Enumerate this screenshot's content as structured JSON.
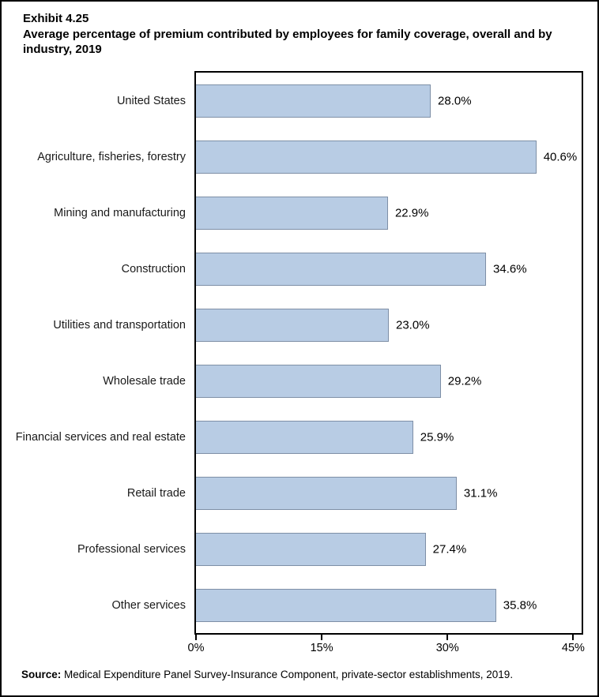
{
  "title": {
    "exhibit": "Exhibit 4.25",
    "text": "Average percentage of premium contributed by employees for family coverage, overall and by industry, 2019"
  },
  "source": {
    "label": "Source:",
    "text": " Medical Expenditure Panel Survey-Insurance Component, private-sector establishments, 2019."
  },
  "colors": {
    "bar_fill": "#b8cce4",
    "bar_border": "#7e8fa6",
    "axis": "#000000",
    "background": "#ffffff"
  },
  "chart_data": {
    "type": "bar",
    "orientation": "horizontal",
    "title": "Average percentage of premium contributed by employees for family coverage, overall and by industry, 2019",
    "categories": [
      "United States",
      "Agriculture, fisheries, forestry",
      "Mining and manufacturing",
      "Construction",
      "Utilities and transportation",
      "Wholesale trade",
      "Financial services and real estate",
      "Retail trade",
      "Professional services",
      "Other services"
    ],
    "values": [
      28.0,
      40.6,
      22.9,
      34.6,
      23.0,
      29.2,
      25.9,
      31.1,
      27.4,
      35.8
    ],
    "value_labels": [
      "28.0%",
      "40.6%",
      "22.9%",
      "34.6%",
      "23.0%",
      "29.2%",
      "25.9%",
      "31.1%",
      "27.4%",
      "35.8%"
    ],
    "xlabel": "",
    "ylabel": "",
    "xlim": [
      0,
      46
    ],
    "xticks": [
      0,
      15,
      30,
      45
    ],
    "xtick_labels": [
      "0%",
      "15%",
      "30%",
      "45%"
    ],
    "grid": false,
    "legend": null
  }
}
